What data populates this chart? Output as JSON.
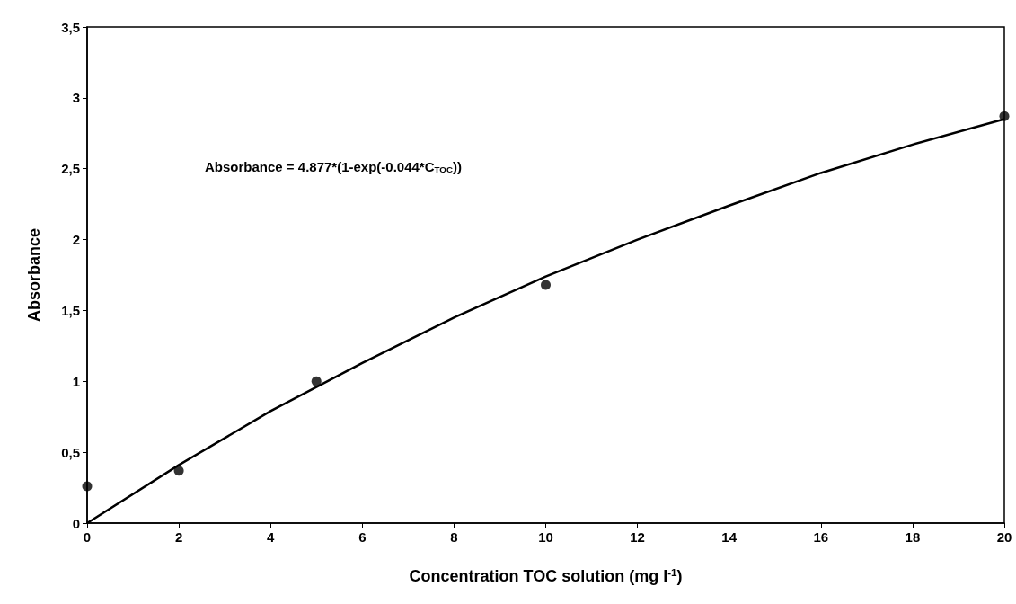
{
  "chart_data": {
    "type": "scatter",
    "xlabel": "Concentration TOC solution (mg l$^{-1}$)",
    "ylabel": "Absorbance",
    "annotations": [
      "Absorbance = 4.877*(1-exp(-0.044*C$_{TOC}$))"
    ],
    "xlim": [
      0,
      20
    ],
    "xticks": [
      0,
      2,
      4,
      6,
      8,
      10,
      12,
      14,
      16,
      18,
      20
    ],
    "ylim": [
      0,
      3.5
    ],
    "yticks": [
      0,
      {
        "value": 0.5,
        "label": "0,5"
      },
      1,
      {
        "value": 1.5,
        "label": "1,5"
      },
      2,
      {
        "value": 2.5,
        "label": "2,5"
      },
      3,
      {
        "value": 3.5,
        "label": "3,5"
      }
    ],
    "grid": false,
    "marker": "circle",
    "series": [
      {
        "color": "#000000",
        "x": [
          0,
          2,
          5,
          10,
          20
        ],
        "values": [
          0.26,
          0.37,
          1.0,
          1.68,
          2.87
        ]
      },
      {
        "type": "line",
        "color": "#000000",
        "marker": "none",
        "line_style": "solid",
        "x": [
          0,
          2,
          4,
          6,
          8,
          10,
          12,
          14,
          16,
          18,
          20
        ],
        "values": [
          0,
          0.41,
          0.79,
          1.13,
          1.45,
          1.74,
          2.0,
          2.24,
          2.47,
          2.67,
          2.85
        ]
      }
    ]
  }
}
